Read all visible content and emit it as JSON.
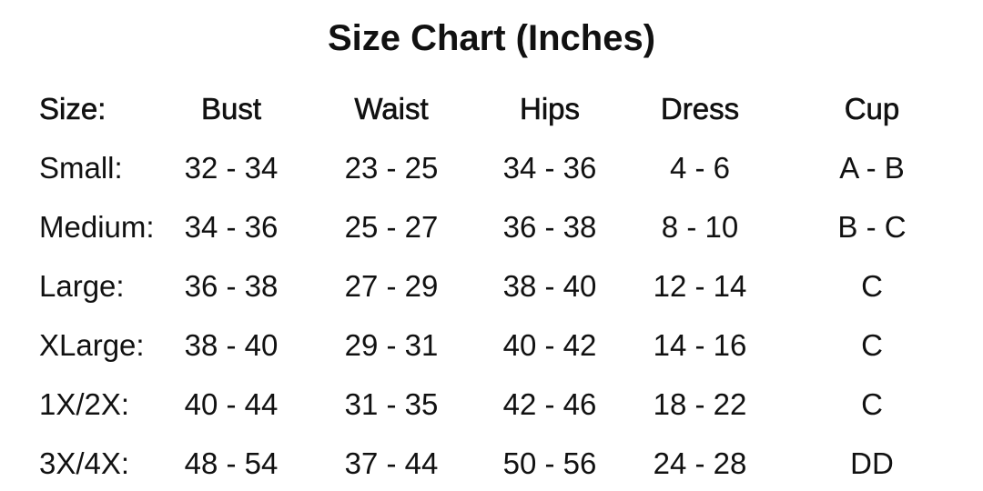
{
  "title": "Size Chart (Inches)",
  "headers": [
    "Size:",
    "Bust",
    "Waist",
    "Hips",
    "Dress",
    "Cup"
  ],
  "rows": [
    [
      "Small:",
      "32 - 34",
      "23 - 25",
      "34 - 36",
      "4 - 6",
      "A - B"
    ],
    [
      "Medium:",
      "34 - 36",
      "25 - 27",
      "36 - 38",
      "8 - 10",
      "B - C"
    ],
    [
      "Large:",
      "36 - 38",
      "27 - 29",
      "38 - 40",
      "12 - 14",
      "C"
    ],
    [
      "XLarge:",
      "38 - 40",
      "29 - 31",
      "40 - 42",
      "14 - 16",
      "C"
    ],
    [
      "1X/2X:",
      "40 - 44",
      "31 - 35",
      "42 - 46",
      "18 - 22",
      "C"
    ],
    [
      "3X/4X:",
      "48 - 54",
      "37 - 44",
      "50 - 56",
      "24 - 28",
      "DD"
    ]
  ]
}
